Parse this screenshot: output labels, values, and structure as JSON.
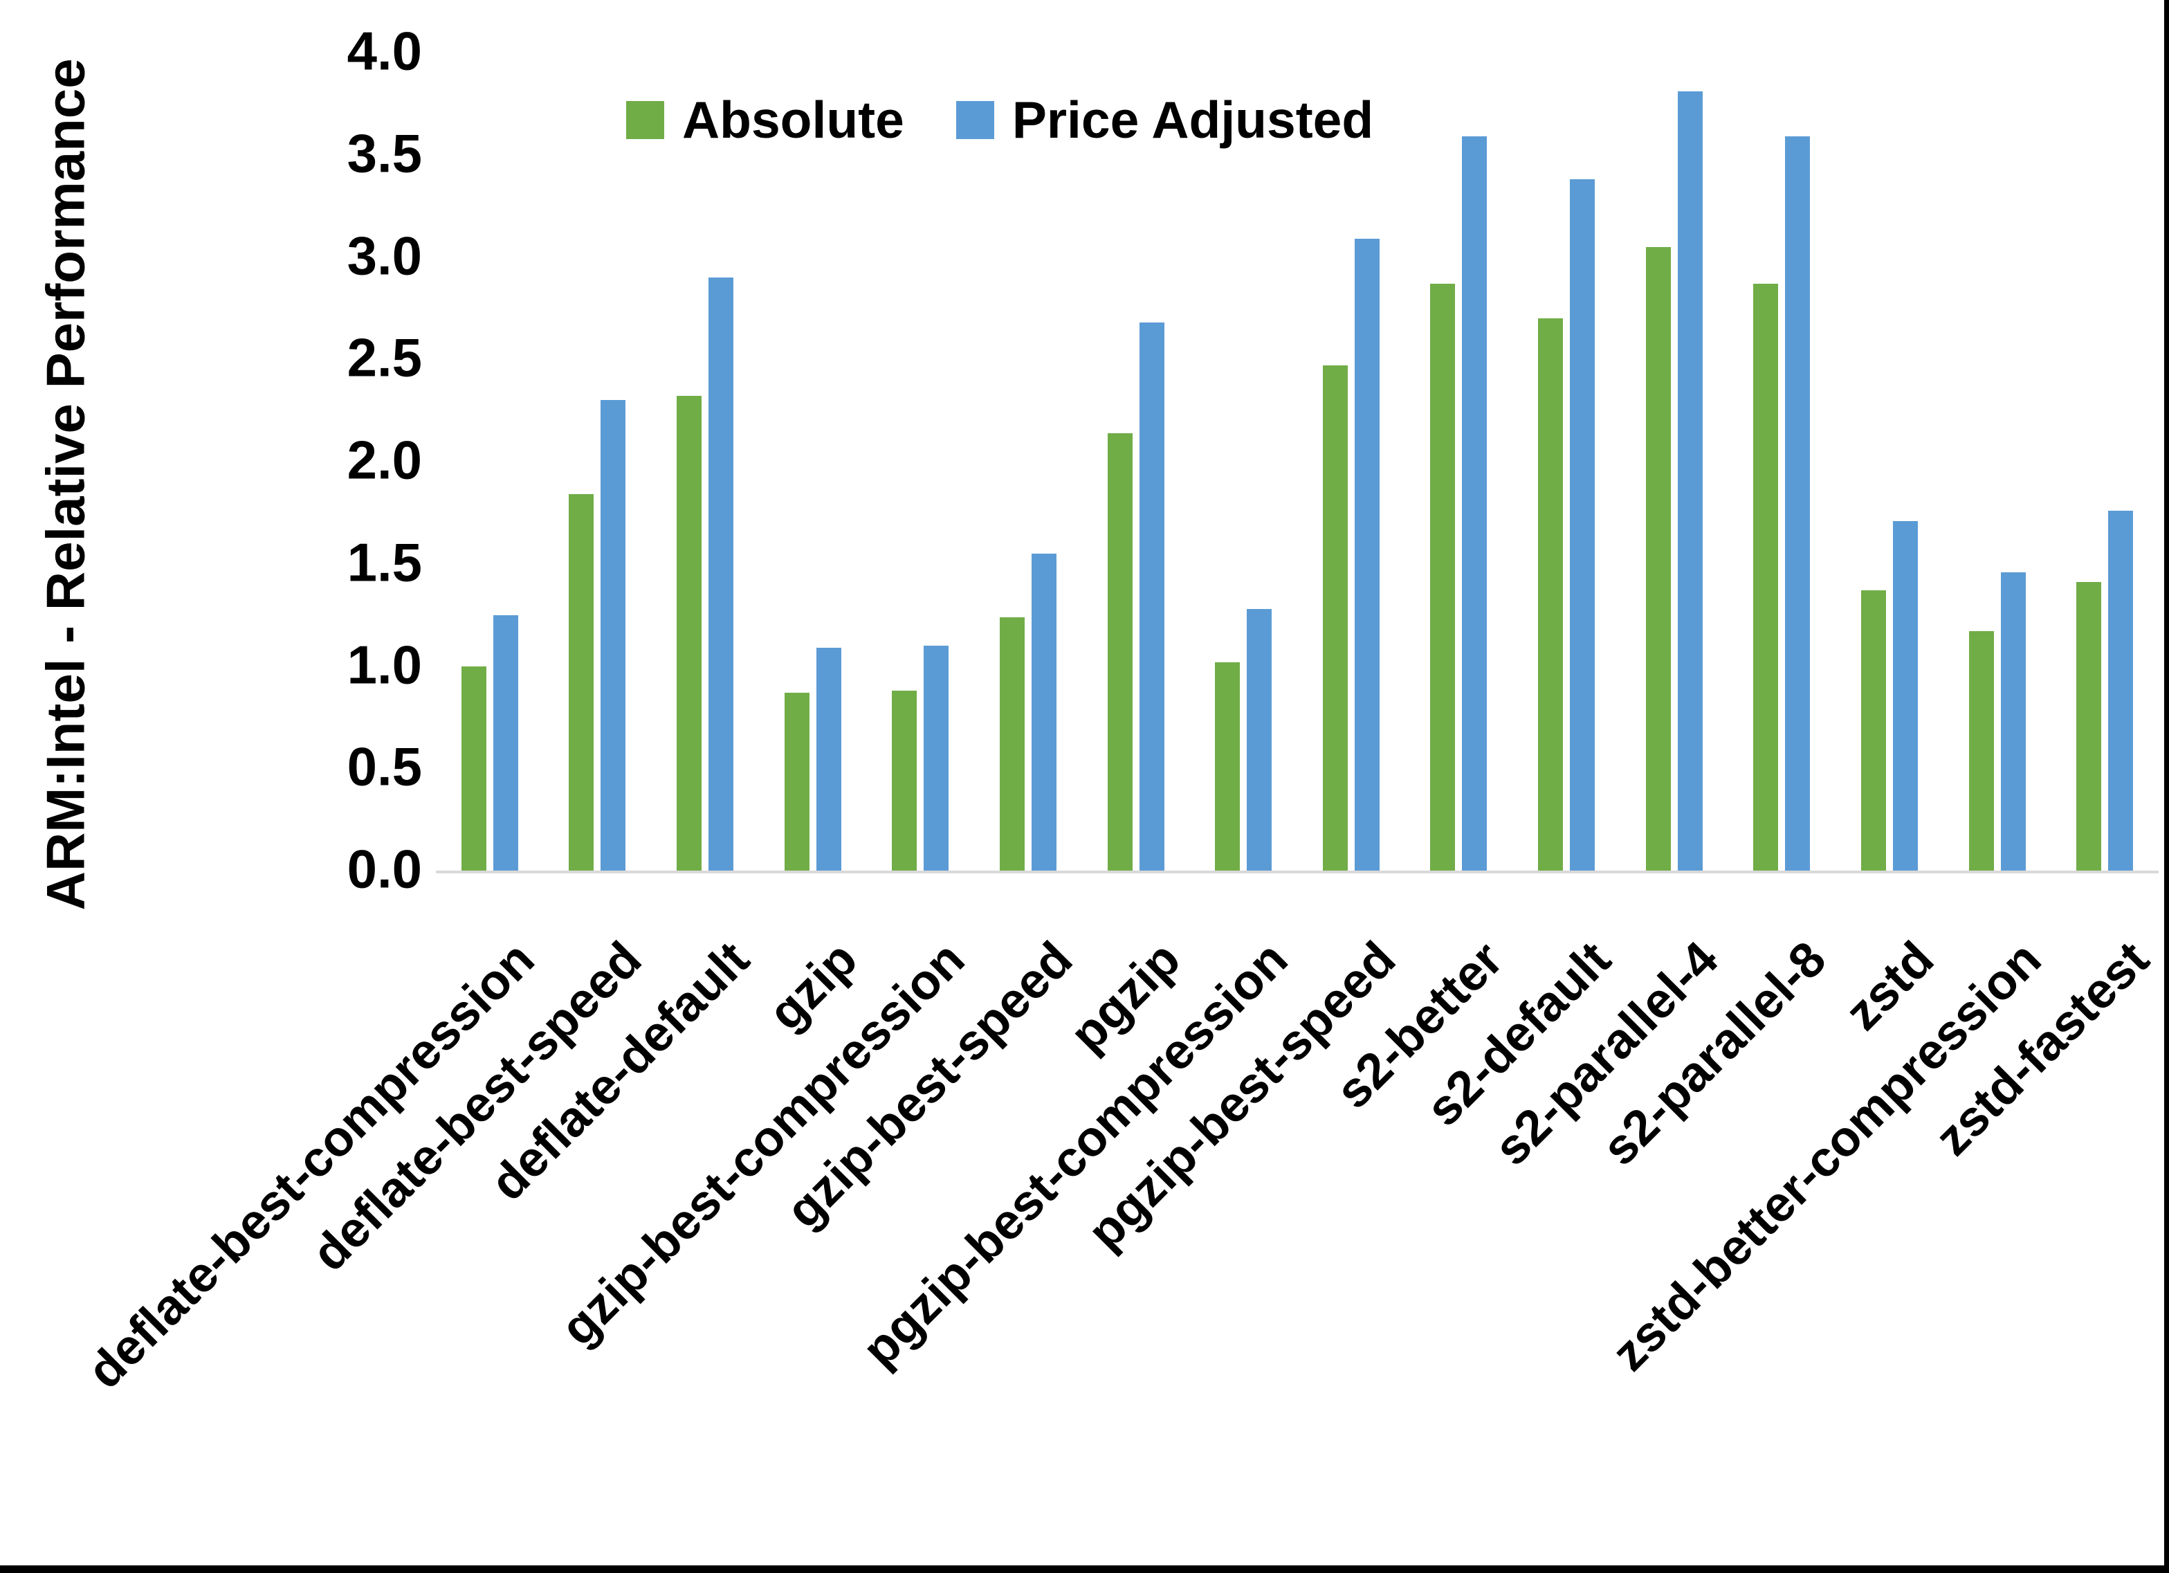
{
  "chart_data": {
    "type": "bar",
    "title": "",
    "ylabel": "ARM:Intel - Relative Performance",
    "xlabel": "",
    "ylim": [
      0,
      4
    ],
    "ytick_step": 0.5,
    "ytick_labels": [
      "0.0",
      "0.5",
      "1.0",
      "1.5",
      "2.0",
      "2.5",
      "3.0",
      "3.5",
      "4.0"
    ],
    "grid": false,
    "legend_position": "top-center",
    "axis_line_color": "#D9D9D9",
    "text_color": "#000000",
    "background": "#FFFFFF",
    "frame_border_color": "#000000",
    "categories": [
      "deflate-best-compression",
      "deflate-best-speed",
      "deflate-default",
      "gzip",
      "gzip-best-compression",
      "gzip-best-speed",
      "pgzip",
      "pgzip-best-compression",
      "pgzip-best-speed",
      "s2-better",
      "s2-default",
      "s2-parallel-4",
      "s2-parallel-8",
      "zstd",
      "zstd-better-compression",
      "zstd-fastest"
    ],
    "series": [
      {
        "name": "Absolute",
        "color": "#70AD47",
        "values": [
          1.0,
          1.84,
          2.32,
          0.87,
          0.88,
          1.24,
          2.14,
          1.02,
          2.47,
          2.87,
          2.7,
          3.05,
          2.87,
          1.37,
          1.17,
          1.41
        ]
      },
      {
        "name": "Price Adjusted",
        "color": "#5B9BD5",
        "values": [
          1.25,
          2.3,
          2.9,
          1.09,
          1.1,
          1.55,
          2.68,
          1.28,
          3.09,
          3.59,
          3.38,
          3.81,
          3.59,
          1.71,
          1.46,
          1.76
        ]
      }
    ]
  }
}
